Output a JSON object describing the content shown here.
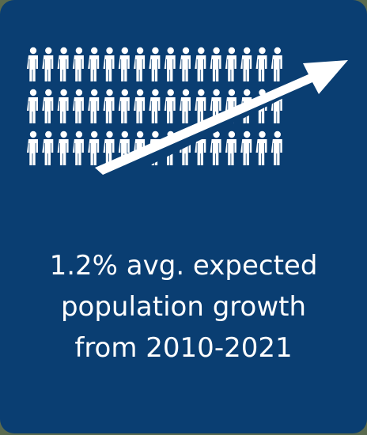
{
  "card": {
    "background": "#0a3e72",
    "icon": "population-growth-icon",
    "people_rows": 3,
    "people_per_row": 17,
    "lines": [
      "1.2% avg. expected",
      "population growth",
      "from 2010-2021"
    ]
  }
}
